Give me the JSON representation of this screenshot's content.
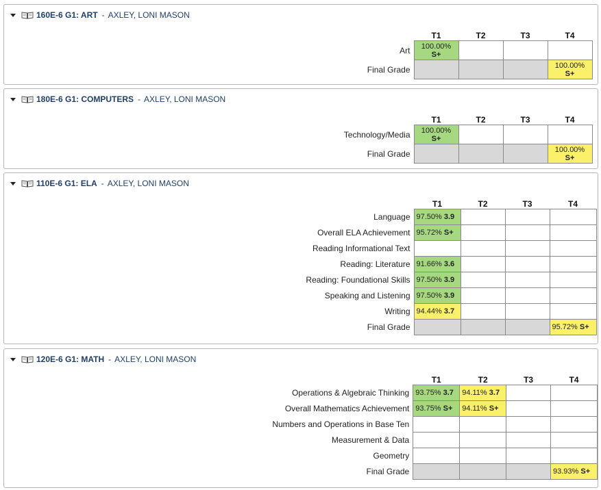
{
  "sections": [
    {
      "course": "160E-6 G1: ART",
      "teacher": "AXLEY, LONI MASON",
      "terms": [
        "T1",
        "T2",
        "T3",
        "T4"
      ],
      "rows": [
        {
          "label": "Art",
          "cells": [
            {
              "pct": "100.00%",
              "mark": "S+",
              "color": "green"
            },
            {},
            {},
            {}
          ]
        },
        {
          "label": "Final Grade",
          "final": true,
          "cells": [
            {},
            {},
            {},
            {
              "pct": "100.00%",
              "mark": "S+",
              "color": "yellow"
            }
          ]
        }
      ]
    },
    {
      "course": "180E-6 G1: COMPUTERS",
      "teacher": "AXLEY, LONI MASON",
      "terms": [
        "T1",
        "T2",
        "T3",
        "T4"
      ],
      "rows": [
        {
          "label": "Technology/Media",
          "cells": [
            {
              "pct": "100.00%",
              "mark": "S+",
              "color": "green"
            },
            {},
            {},
            {}
          ]
        },
        {
          "label": "Final Grade",
          "final": true,
          "cells": [
            {},
            {},
            {},
            {
              "pct": "100.00%",
              "mark": "S+",
              "color": "yellow"
            }
          ]
        }
      ]
    },
    {
      "course": "110E-6 G1: ELA",
      "teacher": "AXLEY, LONI MASON",
      "terms": [
        "T1",
        "T2",
        "T3",
        "T4"
      ],
      "rows": [
        {
          "label": "Language",
          "cells": [
            {
              "pct": "97.50%",
              "mark": "3.9",
              "color": "green"
            },
            {},
            {},
            {}
          ]
        },
        {
          "label": "Overall ELA Achievement",
          "cells": [
            {
              "pct": "95.72%",
              "mark": "S+",
              "color": "green"
            },
            {},
            {},
            {}
          ]
        },
        {
          "label": "Reading Informational Text",
          "cells": [
            {},
            {},
            {},
            {}
          ]
        },
        {
          "label": "Reading: Literature",
          "cells": [
            {
              "pct": "91.66%",
              "mark": "3.6",
              "color": "green"
            },
            {},
            {},
            {}
          ]
        },
        {
          "label": "Reading: Foundational Skills",
          "cells": [
            {
              "pct": "97.50%",
              "mark": "3.9",
              "color": "green"
            },
            {},
            {},
            {}
          ]
        },
        {
          "label": "Speaking and Listening",
          "cells": [
            {
              "pct": "97.50%",
              "mark": "3.9",
              "color": "green"
            },
            {},
            {},
            {}
          ]
        },
        {
          "label": "Writing",
          "cells": [
            {
              "pct": "94.44%",
              "mark": "3.7",
              "color": "yellow"
            },
            {},
            {},
            {}
          ]
        },
        {
          "label": "Final Grade",
          "final": true,
          "cells": [
            {},
            {},
            {},
            {
              "pct": "95.72%",
              "mark": "S+",
              "color": "yellow"
            }
          ]
        }
      ]
    },
    {
      "course": "120E-6 G1: MATH",
      "teacher": "AXLEY, LONI MASON",
      "terms": [
        "T1",
        "T2",
        "T3",
        "T4"
      ],
      "rows": [
        {
          "label": "Operations & Algebraic Thinking",
          "cells": [
            {
              "pct": "93.75%",
              "mark": "3.7",
              "color": "green"
            },
            {
              "pct": "94.11%",
              "mark": "3.7",
              "color": "yellow"
            },
            {},
            {}
          ]
        },
        {
          "label": "Overall Mathematics Achievement",
          "cells": [
            {
              "pct": "93.75%",
              "mark": "S+",
              "color": "green"
            },
            {
              "pct": "94.11%",
              "mark": "S+",
              "color": "yellow"
            },
            {},
            {}
          ]
        },
        {
          "label": "Numbers and Operations in Base Ten",
          "cells": [
            {},
            {},
            {},
            {}
          ]
        },
        {
          "label": "Measurement & Data",
          "cells": [
            {},
            {},
            {},
            {}
          ]
        },
        {
          "label": "Geometry",
          "cells": [
            {},
            {},
            {},
            {}
          ]
        },
        {
          "label": "Final Grade",
          "final": true,
          "cells": [
            {},
            {},
            {},
            {
              "pct": "93.93%",
              "mark": "S+",
              "color": "yellow"
            }
          ]
        }
      ]
    }
  ],
  "icons": {
    "toggle": "triangle-down-icon",
    "course": "open-book-icon"
  },
  "colors": {
    "green": "#a6d87f",
    "yellow": "#fbf06a",
    "gray": "#d8d8d8",
    "link": "#1f3f6a"
  }
}
